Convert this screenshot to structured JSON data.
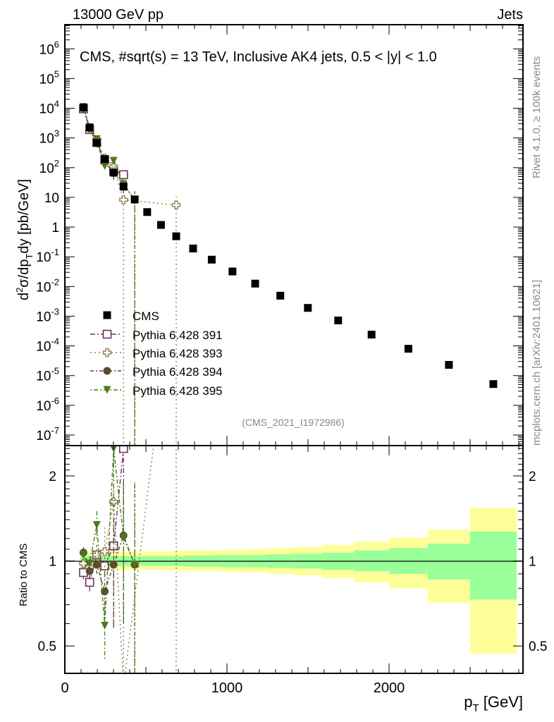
{
  "header": {
    "left": "13000 GeV pp",
    "right": "Jets"
  },
  "side_text": {
    "top": "Rivet 4.1.0, ≥ 100k events",
    "bottom": "mcplots.cern.ch [arXiv:2401.10621]"
  },
  "chart_data": [
    {
      "type": "scatter",
      "panel": "main",
      "title": "CMS, #sqrt(s) = 13 TeV, Inclusive AK4 jets, 0.5 < |y| < 1.0",
      "analysis_id": "(CMS_2021_I1972986)",
      "ylabel": "d²σ/dp_T dy [pb/GeV]",
      "xlabel": "p_T [GeV]",
      "xlim": [
        0,
        2826
      ],
      "ylim": [
        4.4e-08,
        6500000.0
      ],
      "yscale": "log",
      "y_tick_exponents": [
        6,
        5,
        4,
        3,
        2,
        1,
        0,
        -1,
        -2,
        -3,
        -4,
        -5,
        -6,
        -7
      ],
      "x_ticks": [
        0,
        1000,
        2000
      ],
      "legend_position": "middle-left",
      "series": [
        {
          "name": "CMS",
          "marker": "square-filled",
          "color": "#000000",
          "x": [
            115,
            153,
            197,
            246,
            301,
            362,
            431,
            508,
            593,
            687,
            791,
            906,
            1034,
            1174,
            1329,
            1499,
            1686,
            1892,
            2119,
            2369,
            2643
          ],
          "y": [
            10500,
            2270,
            680,
            194,
            68,
            23,
            8.5,
            3.2,
            1.18,
            0.49,
            0.19,
            0.08,
            0.032,
            0.0125,
            0.0049,
            0.0019,
            0.00072,
            0.00024,
            8e-05,
            2.3e-05,
            5.2e-06
          ]
        },
        {
          "name": "Pythia 6.428 391",
          "marker": "square-open",
          "color": "#6e3358",
          "dash": "7,3,2,3",
          "x": [
            115,
            153,
            197,
            246,
            301,
            362
          ],
          "y": [
            9550,
            1910,
            714,
            186,
            77,
            58
          ],
          "ratio": [
            0.91,
            0.84,
            1.05,
            0.96,
            1.13,
            2.5
          ],
          "ratio_err": [
            [
              0.86,
              0.96
            ],
            [
              0.78,
              0.9
            ],
            [
              0.97,
              1.13
            ],
            [
              0.88,
              1.05
            ],
            [
              0.58,
              1.5
            ],
            [
              1.45,
              3.2
            ]
          ]
        },
        {
          "name": "Pythia 6.428 393",
          "marker": "cross-open",
          "color": "#8c7d55",
          "dash": "2,4",
          "x": [
            115,
            153,
            197,
            246,
            301,
            362,
            687
          ],
          "y": [
            10300,
            2160,
            714,
            210,
            110,
            8.3,
            5.5
          ],
          "ratio": [
            0.98,
            0.95,
            1.05,
            1.08,
            1.62,
            0.36,
            11.2
          ],
          "ratio_err": [
            [
              0.93,
              1.03
            ],
            [
              0.88,
              1.03
            ],
            [
              0.95,
              1.17
            ],
            [
              0.92,
              1.32
            ],
            [
              1.0,
              3.0
            ],
            [
              0.0,
              2.0
            ],
            [
              0.0,
              22
            ]
          ]
        },
        {
          "name": "Pythia 6.428 394",
          "marker": "circle-filled",
          "color": "#5e4a30",
          "dash": "5,3,2,3",
          "x": [
            115,
            153,
            197,
            246,
            301,
            362,
            431
          ],
          "y": [
            11200,
            2090,
            660,
            151,
            66,
            28,
            8.2
          ],
          "ratio": [
            1.07,
            0.92,
            0.97,
            0.78,
            0.97,
            1.23,
            0.97
          ],
          "ratio_err": [
            [
              1.02,
              1.12
            ],
            [
              0.86,
              0.98
            ],
            [
              0.9,
              1.05
            ],
            [
              0.65,
              0.92
            ],
            [
              0.6,
              1.4
            ],
            [
              0.6,
              1.9
            ],
            [
              0.0,
              1.9
            ]
          ]
        },
        {
          "name": "Pythia 6.428 395",
          "marker": "triangle-down-filled",
          "color": "#4a7a1a",
          "dash": "2,3,6,3",
          "x": [
            115,
            153,
            197,
            246,
            301,
            362,
            431
          ],
          "y": [
            11000,
            2220,
            910,
            114,
            170,
            28,
            8.2
          ],
          "ratio": [
            1.05,
            0.98,
            1.34,
            0.59,
            2.5,
            1.21,
            0.97
          ],
          "ratio_err": [
            [
              1.0,
              1.1
            ],
            [
              0.92,
              1.04
            ],
            [
              1.2,
              1.5
            ],
            [
              0.45,
              0.75
            ],
            [
              1.5,
              3.5
            ],
            [
              0.6,
              1.9
            ],
            [
              0.0,
              1.9
            ]
          ]
        }
      ]
    },
    {
      "type": "area",
      "panel": "ratio",
      "ylabel": "Ratio to CMS",
      "ylim": [
        0.4,
        2.56
      ],
      "yscale": "log",
      "y_ticks": [
        0.5,
        1,
        2
      ],
      "y_tick_labels": [
        "0.5",
        "1",
        "2"
      ],
      "bin_edges": [
        97,
        133,
        174,
        220,
        272,
        330,
        395,
        468,
        548,
        638,
        737,
        846,
        967,
        1101,
        1248,
        1410,
        1588,
        1784,
        2000,
        2238,
        2500,
        2787
      ],
      "total_band": {
        "color": "#ffff99",
        "up": [
          1.08,
          1.08,
          1.08,
          1.08,
          1.08,
          1.08,
          1.08,
          1.08,
          1.08,
          1.085,
          1.09,
          1.09,
          1.095,
          1.1,
          1.11,
          1.12,
          1.14,
          1.17,
          1.21,
          1.29,
          1.54
        ],
        "down": [
          0.93,
          0.93,
          0.93,
          0.93,
          0.93,
          0.93,
          0.93,
          0.93,
          0.93,
          0.925,
          0.92,
          0.92,
          0.915,
          0.91,
          0.9,
          0.89,
          0.87,
          0.84,
          0.8,
          0.71,
          0.47
        ]
      },
      "stat_band": {
        "color": "#99ff99",
        "up": [
          1.04,
          1.04,
          1.04,
          1.04,
          1.04,
          1.04,
          1.04,
          1.04,
          1.04,
          1.04,
          1.045,
          1.045,
          1.05,
          1.05,
          1.055,
          1.06,
          1.07,
          1.09,
          1.11,
          1.15,
          1.27
        ],
        "down": [
          0.96,
          0.96,
          0.96,
          0.96,
          0.96,
          0.96,
          0.96,
          0.96,
          0.96,
          0.96,
          0.955,
          0.955,
          0.95,
          0.95,
          0.945,
          0.94,
          0.93,
          0.92,
          0.9,
          0.86,
          0.73
        ]
      }
    }
  ]
}
